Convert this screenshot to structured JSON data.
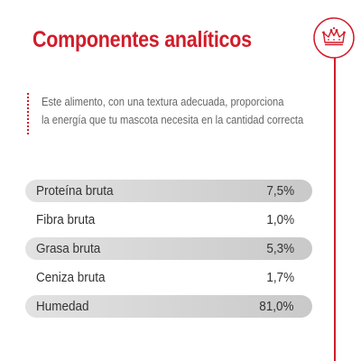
{
  "title": "Componentes analíticos",
  "description": {
    "line1": "Este alimento, con una textura adecuada, proporciona",
    "line2": "la energía que tu mascota necesita en la cantidad correcta"
  },
  "colors": {
    "accent": "#d21c2a",
    "row_shade": "#d4d4d4",
    "text": "#333333",
    "description_text": "#666666"
  },
  "icons": {
    "brand": "crown-icon"
  },
  "components": [
    {
      "name": "Proteína bruta",
      "value": "7,5%",
      "shaded": true
    },
    {
      "name": "Fibra bruta",
      "value": "1,0%",
      "shaded": false
    },
    {
      "name": "Grasa bruta",
      "value": "5,3%",
      "shaded": true
    },
    {
      "name": "Ceniza bruta",
      "value": "1,7%",
      "shaded": false
    },
    {
      "name": "Humedad",
      "value": "81,0%",
      "shaded": true
    }
  ]
}
